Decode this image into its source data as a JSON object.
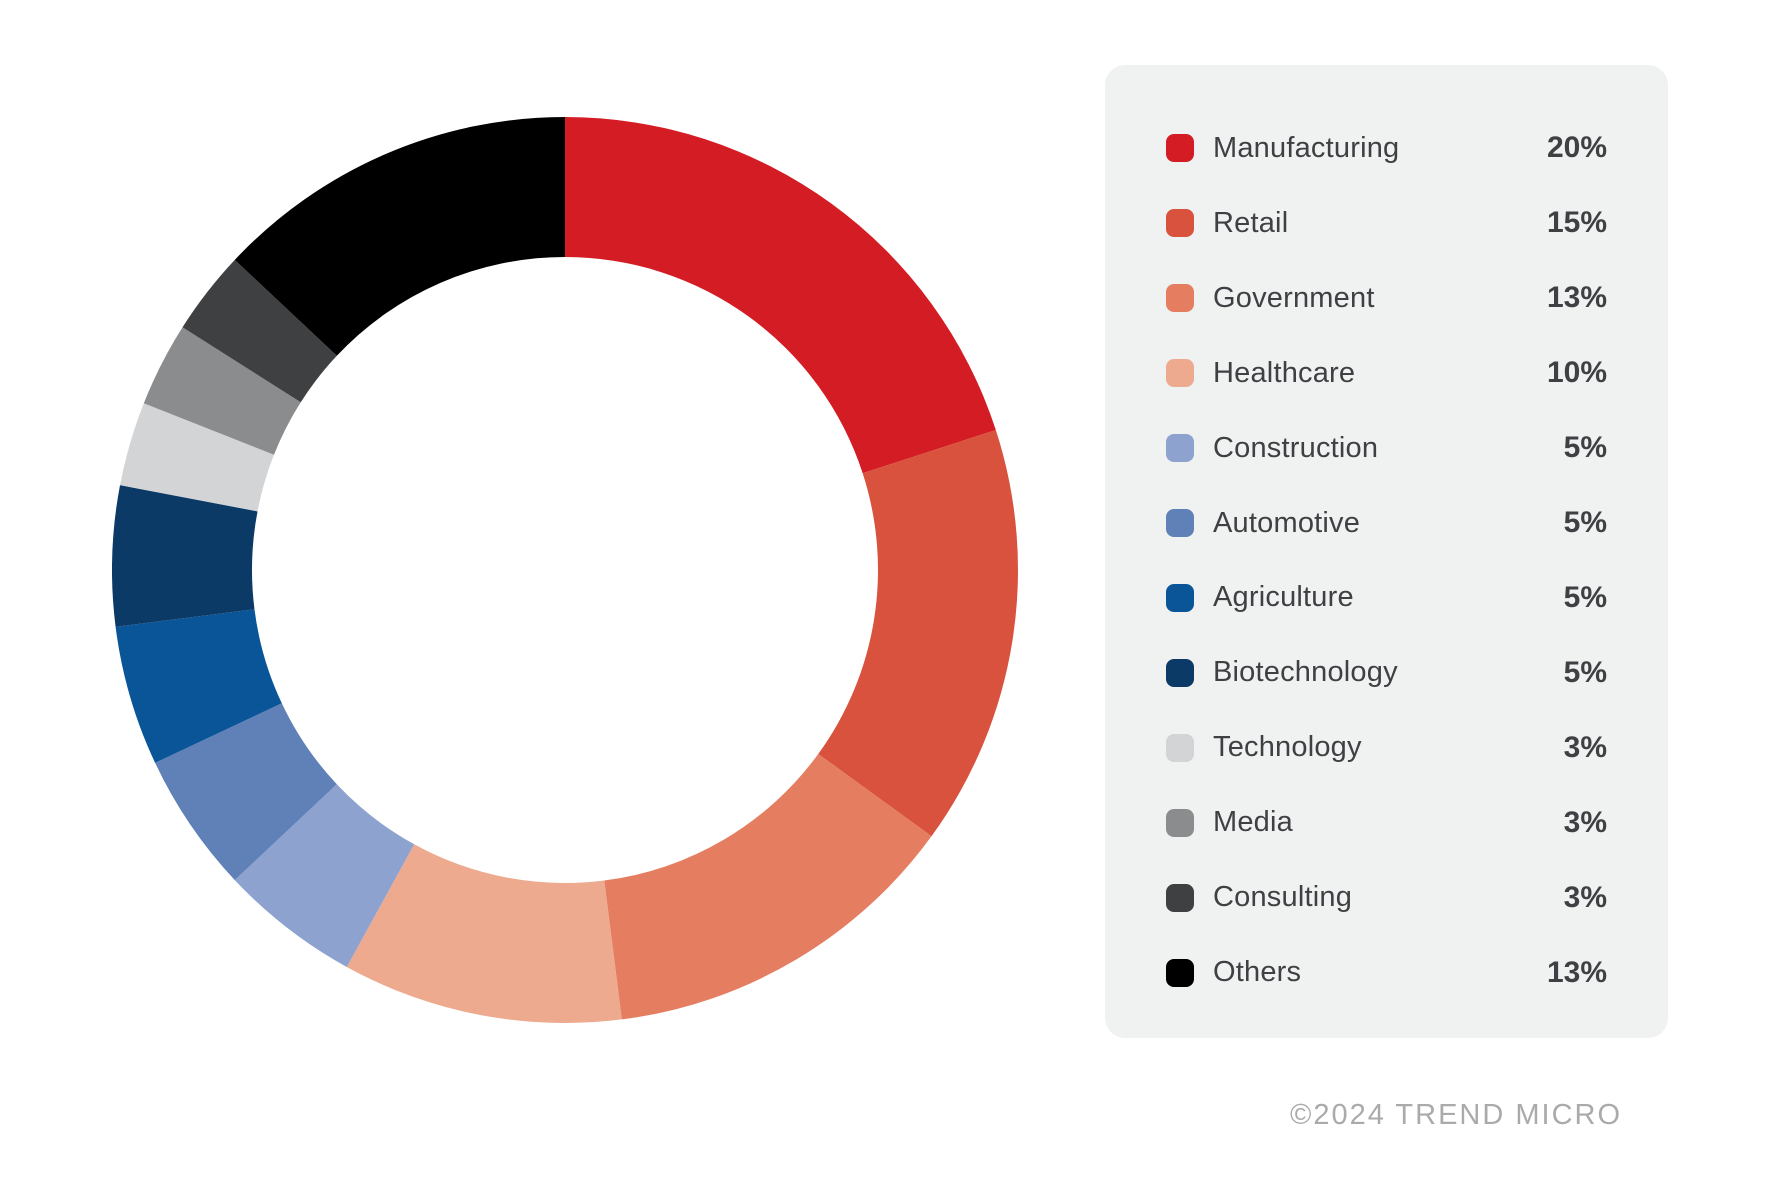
{
  "chart_data": {
    "type": "pie",
    "variant": "donut",
    "categories": [
      "Manufacturing",
      "Retail",
      "Government",
      "Healthcare",
      "Construction",
      "Automotive",
      "Agriculture",
      "Biotechnology",
      "Technology",
      "Media",
      "Consulting",
      "Others"
    ],
    "values": [
      20,
      15,
      13,
      10,
      5,
      5,
      5,
      5,
      3,
      3,
      3,
      13
    ],
    "unit": "%",
    "colors": [
      "#d41c24",
      "#d9523e",
      "#e57e61",
      "#edaa8e",
      "#8da2ce",
      "#6080b8",
      "#0a5598",
      "#0c3a67",
      "#d2d4d6",
      "#8a8c8e",
      "#3e4042",
      "#000000"
    ],
    "start_angle_deg": 0,
    "direction": "clockwise",
    "inner_radius_ratio": 0.69,
    "legend_position": "right",
    "title": ""
  },
  "legend": {
    "items": [
      {
        "label": "Manufacturing",
        "percent": "20%",
        "color": "#d41c24"
      },
      {
        "label": "Retail",
        "percent": "15%",
        "color": "#d9523e"
      },
      {
        "label": "Government",
        "percent": "13%",
        "color": "#e57e61"
      },
      {
        "label": "Healthcare",
        "percent": "10%",
        "color": "#edaa8e"
      },
      {
        "label": "Construction",
        "percent": "5%",
        "color": "#8da2ce"
      },
      {
        "label": "Automotive",
        "percent": "5%",
        "color": "#6080b8"
      },
      {
        "label": "Agriculture",
        "percent": "5%",
        "color": "#0a5598"
      },
      {
        "label": "Biotechnology",
        "percent": "5%",
        "color": "#0c3a67"
      },
      {
        "label": "Technology",
        "percent": "3%",
        "color": "#d2d4d6"
      },
      {
        "label": "Media",
        "percent": "3%",
        "color": "#8a8c8e"
      },
      {
        "label": "Consulting",
        "percent": "3%",
        "color": "#3e4042"
      },
      {
        "label": "Others",
        "percent": "13%",
        "color": "#000000"
      }
    ]
  },
  "footer": {
    "copyright": "©2024 TREND MICRO"
  }
}
